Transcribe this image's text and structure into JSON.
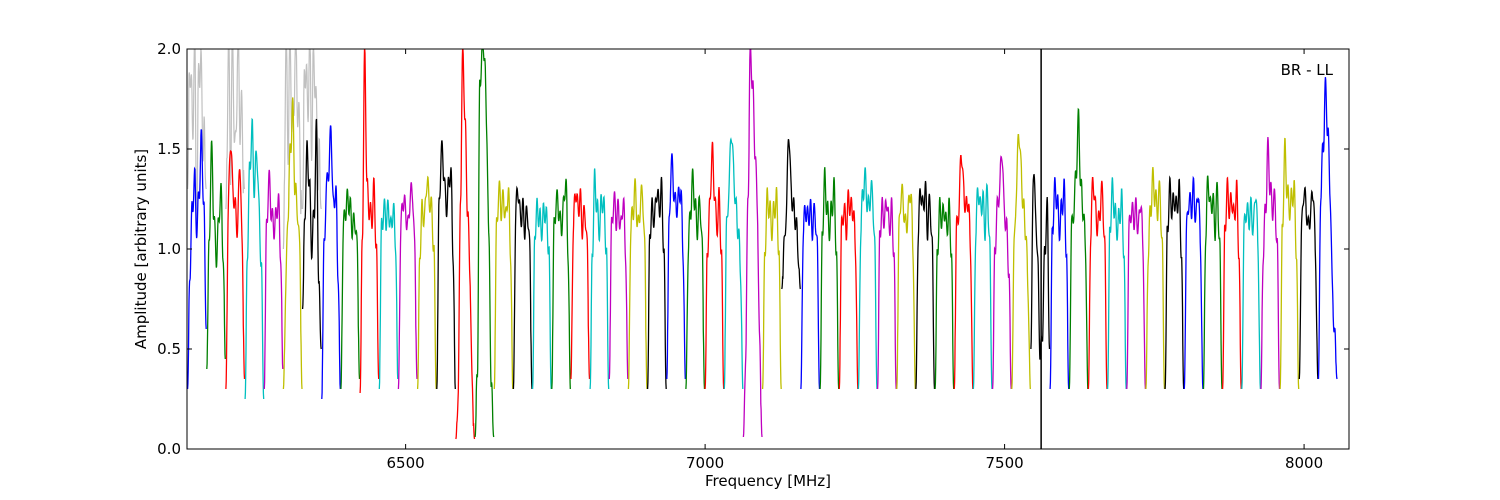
{
  "chart_data": {
    "type": "line",
    "title": "",
    "xlabel": "Frequency [MHz]",
    "ylabel": "Amplitude [arbitrary units]",
    "annotation": "BR - LL",
    "xlim": [
      6135,
      8075
    ],
    "ylim": [
      0.0,
      2.0
    ],
    "xticks": [
      6500,
      7000,
      7500,
      8000
    ],
    "xtick_labels": [
      "6500",
      "7000",
      "7500",
      "8000"
    ],
    "yticks": [
      0.0,
      0.5,
      1.0,
      1.5,
      2.0
    ],
    "ytick_labels": [
      "0.0",
      "0.5",
      "1.0",
      "1.5",
      "2.0"
    ],
    "grid": false,
    "vline_x": 7561,
    "channel_width_mhz": 32,
    "color_cycle": [
      "#0000ff",
      "#008000",
      "#ff0000",
      "#00bfbf",
      "#bf00bf",
      "#bfbf00",
      "#000000"
    ],
    "flagged_color": "#c0c0c0",
    "series": [
      {
        "x_start": 6136,
        "color": "#0000ff",
        "values": [
          0.3,
          0.9,
          1.2,
          1.35,
          1.1,
          1.3,
          1.55,
          1.2,
          0.6
        ]
      },
      {
        "x_start": 6168,
        "color": "#008000",
        "values": [
          0.4,
          1.0,
          1.5,
          1.2,
          0.95,
          1.1,
          1.3,
          1.0,
          0.45
        ]
      },
      {
        "x_start": 6200,
        "color": "#ff0000",
        "values": [
          0.3,
          1.2,
          1.55,
          1.3,
          1.2,
          1.1,
          1.45,
          1.0,
          0.35
        ]
      },
      {
        "x_start": 6232,
        "color": "#00bfbf",
        "values": [
          0.25,
          1.0,
          1.4,
          1.6,
          1.3,
          1.5,
          1.2,
          0.9,
          0.25
        ]
      },
      {
        "x_start": 6264,
        "color": "#bf00bf",
        "values": [
          0.3,
          1.1,
          1.35,
          1.2,
          1.1,
          1.15,
          1.25,
          1.0,
          0.4
        ]
      },
      {
        "x_start": 6296,
        "color": "#bfbf00",
        "values": [
          0.3,
          0.8,
          1.2,
          1.5,
          1.7,
          1.3,
          1.2,
          1.0,
          0.3
        ]
      },
      {
        "x_start": 6328,
        "color": "#000000",
        "values": [
          0.7,
          1.2,
          1.5,
          1.3,
          1.0,
          1.2,
          1.6,
          0.8,
          0.5
        ]
      },
      {
        "x_start": 6360,
        "color": "#0000ff",
        "values": [
          0.25,
          1.0,
          1.3,
          1.4,
          1.6,
          1.2,
          1.3,
          0.9,
          0.3
        ]
      },
      {
        "x_start": 6392,
        "color": "#008000",
        "values": [
          0.3,
          1.1,
          1.2,
          1.25,
          1.2,
          1.1,
          1.15,
          1.0,
          0.35
        ]
      },
      {
        "x_start": 6424,
        "color": "#ff0000",
        "values": [
          0.28,
          1.1,
          2.0,
          1.3,
          1.2,
          1.15,
          1.3,
          1.0,
          0.35
        ]
      },
      {
        "x_start": 6456,
        "color": "#00bfbf",
        "values": [
          0.3,
          1.1,
          1.2,
          1.15,
          1.2,
          1.1,
          1.2,
          1.05,
          0.35
        ]
      },
      {
        "x_start": 6488,
        "color": "#bf00bf",
        "values": [
          0.3,
          1.1,
          1.25,
          1.2,
          1.1,
          1.25,
          1.3,
          1.0,
          0.35
        ]
      },
      {
        "x_start": 6520,
        "color": "#bfbf00",
        "values": [
          0.3,
          1.0,
          1.2,
          1.15,
          1.35,
          1.25,
          1.2,
          1.0,
          0.3
        ]
      },
      {
        "x_start": 6552,
        "color": "#000000",
        "values": [
          0.3,
          1.2,
          1.5,
          1.4,
          1.2,
          1.3,
          1.4,
          1.0,
          0.3
        ]
      },
      {
        "x_start": 6584,
        "color": "#ff0000",
        "values": [
          0.05,
          0.3,
          1.3,
          2.0,
          1.6,
          1.2,
          0.9,
          0.3,
          0.05
        ]
      },
      {
        "x_start": 6616,
        "color": "#008000",
        "values": [
          0.06,
          0.4,
          1.8,
          2.0,
          2.0,
          1.6,
          1.0,
          0.3,
          0.06
        ]
      },
      {
        "x_start": 6648,
        "color": "#bfbf00",
        "values": [
          0.3,
          1.1,
          1.3,
          1.2,
          1.25,
          1.15,
          1.3,
          1.0,
          0.3
        ]
      },
      {
        "x_start": 6680,
        "color": "#000000",
        "values": [
          0.3,
          1.2,
          1.3,
          1.15,
          1.2,
          1.1,
          1.2,
          1.0,
          0.3
        ]
      },
      {
        "x_start": 6712,
        "color": "#00bfbf",
        "values": [
          0.3,
          1.1,
          1.2,
          1.15,
          1.1,
          1.2,
          1.15,
          1.0,
          0.3
        ]
      },
      {
        "x_start": 6744,
        "color": "#008000",
        "values": [
          0.3,
          1.1,
          1.25,
          1.2,
          1.1,
          1.2,
          1.35,
          1.0,
          0.3
        ]
      },
      {
        "x_start": 6776,
        "color": "#ff0000",
        "values": [
          0.35,
          1.1,
          1.3,
          1.2,
          1.25,
          1.1,
          1.2,
          1.0,
          0.35
        ]
      },
      {
        "x_start": 6808,
        "color": "#00bfbf",
        "values": [
          0.3,
          1.0,
          1.35,
          1.2,
          1.1,
          1.25,
          1.2,
          1.0,
          0.3
        ]
      },
      {
        "x_start": 6840,
        "color": "#bf00bf",
        "values": [
          0.35,
          1.1,
          1.25,
          1.15,
          1.2,
          1.1,
          1.25,
          1.0,
          0.35
        ]
      },
      {
        "x_start": 6872,
        "color": "#bfbf00",
        "values": [
          0.3,
          1.1,
          1.2,
          1.3,
          1.1,
          1.2,
          1.3,
          1.0,
          0.3
        ]
      },
      {
        "x_start": 6904,
        "color": "#000000",
        "values": [
          0.3,
          1.1,
          1.2,
          1.15,
          1.3,
          1.2,
          1.3,
          1.0,
          0.3
        ]
      },
      {
        "x_start": 6936,
        "color": "#0000ff",
        "values": [
          0.35,
          1.1,
          1.45,
          1.3,
          1.2,
          1.25,
          1.3,
          1.0,
          0.35
        ]
      },
      {
        "x_start": 6968,
        "color": "#008000",
        "values": [
          0.3,
          1.0,
          1.2,
          1.35,
          1.2,
          1.1,
          1.25,
          1.0,
          0.3
        ]
      },
      {
        "x_start": 7000,
        "color": "#ff0000",
        "values": [
          0.3,
          1.0,
          1.2,
          1.5,
          1.3,
          1.1,
          1.25,
          1.0,
          0.3
        ]
      },
      {
        "x_start": 7032,
        "color": "#00bfbf",
        "values": [
          0.3,
          1.1,
          1.3,
          1.6,
          1.4,
          1.2,
          1.1,
          0.9,
          0.3
        ]
      },
      {
        "x_start": 7064,
        "color": "#bf00bf",
        "values": [
          0.06,
          0.5,
          1.3,
          2.0,
          1.8,
          1.5,
          1.2,
          0.5,
          0.06
        ]
      },
      {
        "x_start": 7096,
        "color": "#bfbf00",
        "values": [
          0.3,
          1.0,
          1.25,
          1.2,
          1.1,
          1.2,
          1.25,
          1.0,
          0.3
        ]
      },
      {
        "x_start": 7128,
        "color": "#000000",
        "values": [
          0.8,
          1.0,
          1.2,
          1.6,
          1.3,
          1.2,
          1.15,
          1.0,
          0.8
        ]
      },
      {
        "x_start": 7160,
        "color": "#0000ff",
        "values": [
          0.3,
          1.1,
          1.2,
          1.15,
          1.2,
          1.1,
          1.2,
          1.0,
          0.3
        ]
      },
      {
        "x_start": 7192,
        "color": "#008000",
        "values": [
          0.3,
          1.1,
          1.35,
          1.2,
          1.1,
          1.2,
          1.3,
          1.0,
          0.3
        ]
      },
      {
        "x_start": 7224,
        "color": "#ff0000",
        "values": [
          0.3,
          1.1,
          1.2,
          1.1,
          1.25,
          1.2,
          1.2,
          1.0,
          0.3
        ]
      },
      {
        "x_start": 7256,
        "color": "#00bfbf",
        "values": [
          0.3,
          1.1,
          1.3,
          1.35,
          1.2,
          1.25,
          1.3,
          1.0,
          0.3
        ]
      },
      {
        "x_start": 7288,
        "color": "#bf00bf",
        "values": [
          0.3,
          1.1,
          1.2,
          1.15,
          1.25,
          1.1,
          1.2,
          1.0,
          0.3
        ]
      },
      {
        "x_start": 7320,
        "color": "#bfbf00",
        "values": [
          0.3,
          1.1,
          1.3,
          1.2,
          1.1,
          1.2,
          1.3,
          1.0,
          0.3
        ]
      },
      {
        "x_start": 7352,
        "color": "#000000",
        "values": [
          0.3,
          1.1,
          1.3,
          1.2,
          1.3,
          1.1,
          1.25,
          1.0,
          0.3
        ]
      },
      {
        "x_start": 7384,
        "color": "#008000",
        "values": [
          0.3,
          1.0,
          1.2,
          1.15,
          1.2,
          1.1,
          1.2,
          1.0,
          0.3
        ]
      },
      {
        "x_start": 7416,
        "color": "#ff0000",
        "values": [
          0.3,
          1.1,
          1.2,
          1.5,
          1.3,
          1.2,
          1.25,
          1.0,
          0.3
        ]
      },
      {
        "x_start": 7448,
        "color": "#00bfbf",
        "values": [
          0.3,
          1.1,
          1.3,
          1.2,
          1.25,
          1.1,
          1.3,
          1.0,
          0.3
        ]
      },
      {
        "x_start": 7480,
        "color": "#bf00bf",
        "values": [
          0.3,
          1.0,
          1.2,
          1.3,
          1.5,
          1.2,
          1.1,
          0.9,
          0.3
        ]
      },
      {
        "x_start": 7512,
        "color": "#bfbf00",
        "values": [
          0.3,
          1.0,
          1.3,
          1.6,
          1.4,
          1.2,
          1.1,
          0.8,
          0.3
        ]
      },
      {
        "x_start": 7544,
        "color": "#000000",
        "values": [
          0.5,
          1.4,
          1.2,
          0.9,
          0.45,
          0.6,
          1.0,
          1.2,
          0.5
        ]
      },
      {
        "x_start": 7576,
        "color": "#0000ff",
        "values": [
          0.3,
          1.1,
          1.3,
          1.25,
          1.1,
          1.2,
          1.3,
          1.0,
          0.3
        ]
      },
      {
        "x_start": 7608,
        "color": "#008000",
        "values": [
          0.3,
          1.1,
          1.2,
          1.4,
          1.65,
          1.3,
          1.2,
          1.0,
          0.3
        ]
      },
      {
        "x_start": 7640,
        "color": "#ff0000",
        "values": [
          0.3,
          1.1,
          1.35,
          1.2,
          1.1,
          1.2,
          1.3,
          1.0,
          0.3
        ]
      },
      {
        "x_start": 7672,
        "color": "#00bfbf",
        "values": [
          0.3,
          1.1,
          1.3,
          1.2,
          1.1,
          1.15,
          1.25,
          1.0,
          0.3
        ]
      },
      {
        "x_start": 7704,
        "color": "#bf00bf",
        "values": [
          0.3,
          1.1,
          1.2,
          1.15,
          1.2,
          1.1,
          1.25,
          1.0,
          0.3
        ]
      },
      {
        "x_start": 7736,
        "color": "#bfbf00",
        "values": [
          0.3,
          1.0,
          1.2,
          1.35,
          1.25,
          1.2,
          1.3,
          1.0,
          0.3
        ]
      },
      {
        "x_start": 7768,
        "color": "#000000",
        "values": [
          0.3,
          1.1,
          1.3,
          1.2,
          1.25,
          1.2,
          1.3,
          1.0,
          0.3
        ]
      },
      {
        "x_start": 7800,
        "color": "#0000ff",
        "values": [
          0.3,
          1.1,
          1.25,
          1.2,
          1.3,
          1.15,
          1.3,
          1.0,
          0.3
        ]
      },
      {
        "x_start": 7832,
        "color": "#008000",
        "values": [
          0.3,
          1.1,
          1.35,
          1.2,
          1.25,
          1.1,
          1.3,
          1.0,
          0.3
        ]
      },
      {
        "x_start": 7864,
        "color": "#ff0000",
        "values": [
          0.3,
          1.1,
          1.3,
          1.2,
          1.25,
          1.15,
          1.3,
          1.0,
          0.3
        ]
      },
      {
        "x_start": 7896,
        "color": "#00bfbf",
        "values": [
          0.3,
          1.1,
          1.2,
          1.15,
          1.2,
          1.1,
          1.3,
          1.0,
          0.3
        ]
      },
      {
        "x_start": 7928,
        "color": "#bf00bf",
        "values": [
          0.3,
          1.0,
          1.2,
          1.5,
          1.3,
          1.2,
          1.25,
          1.0,
          0.3
        ]
      },
      {
        "x_start": 7960,
        "color": "#bfbf00",
        "values": [
          0.3,
          1.1,
          1.5,
          1.3,
          1.2,
          1.25,
          1.3,
          1.0,
          0.3
        ]
      },
      {
        "x_start": 7992,
        "color": "#000000",
        "values": [
          0.35,
          1.1,
          1.3,
          1.2,
          1.1,
          1.2,
          1.3,
          0.95,
          0.35
        ]
      },
      {
        "x_start": 8024,
        "color": "#0000ff",
        "values": [
          0.35,
          1.3,
          1.5,
          1.8,
          1.6,
          1.3,
          0.8,
          0.55,
          0.35
        ]
      }
    ],
    "flagged_series": [
      {
        "x_start": 6136,
        "values": [
          1.3,
          2.0,
          1.6,
          2.0,
          1.2,
          2.0,
          1.8,
          1.5,
          1.3
        ]
      },
      {
        "x_start": 6200,
        "values": [
          1.2,
          2.0,
          1.5,
          2.0,
          1.4,
          2.0,
          1.7,
          1.6,
          1.3
        ]
      },
      {
        "x_start": 6296,
        "values": [
          1.0,
          2.0,
          1.6,
          2.0,
          1.5,
          2.0,
          1.8,
          1.5,
          1.2
        ]
      },
      {
        "x_start": 6328,
        "values": [
          1.2,
          2.0,
          1.7,
          2.0,
          1.6,
          2.0,
          1.6,
          1.4,
          1.2
        ]
      }
    ]
  }
}
